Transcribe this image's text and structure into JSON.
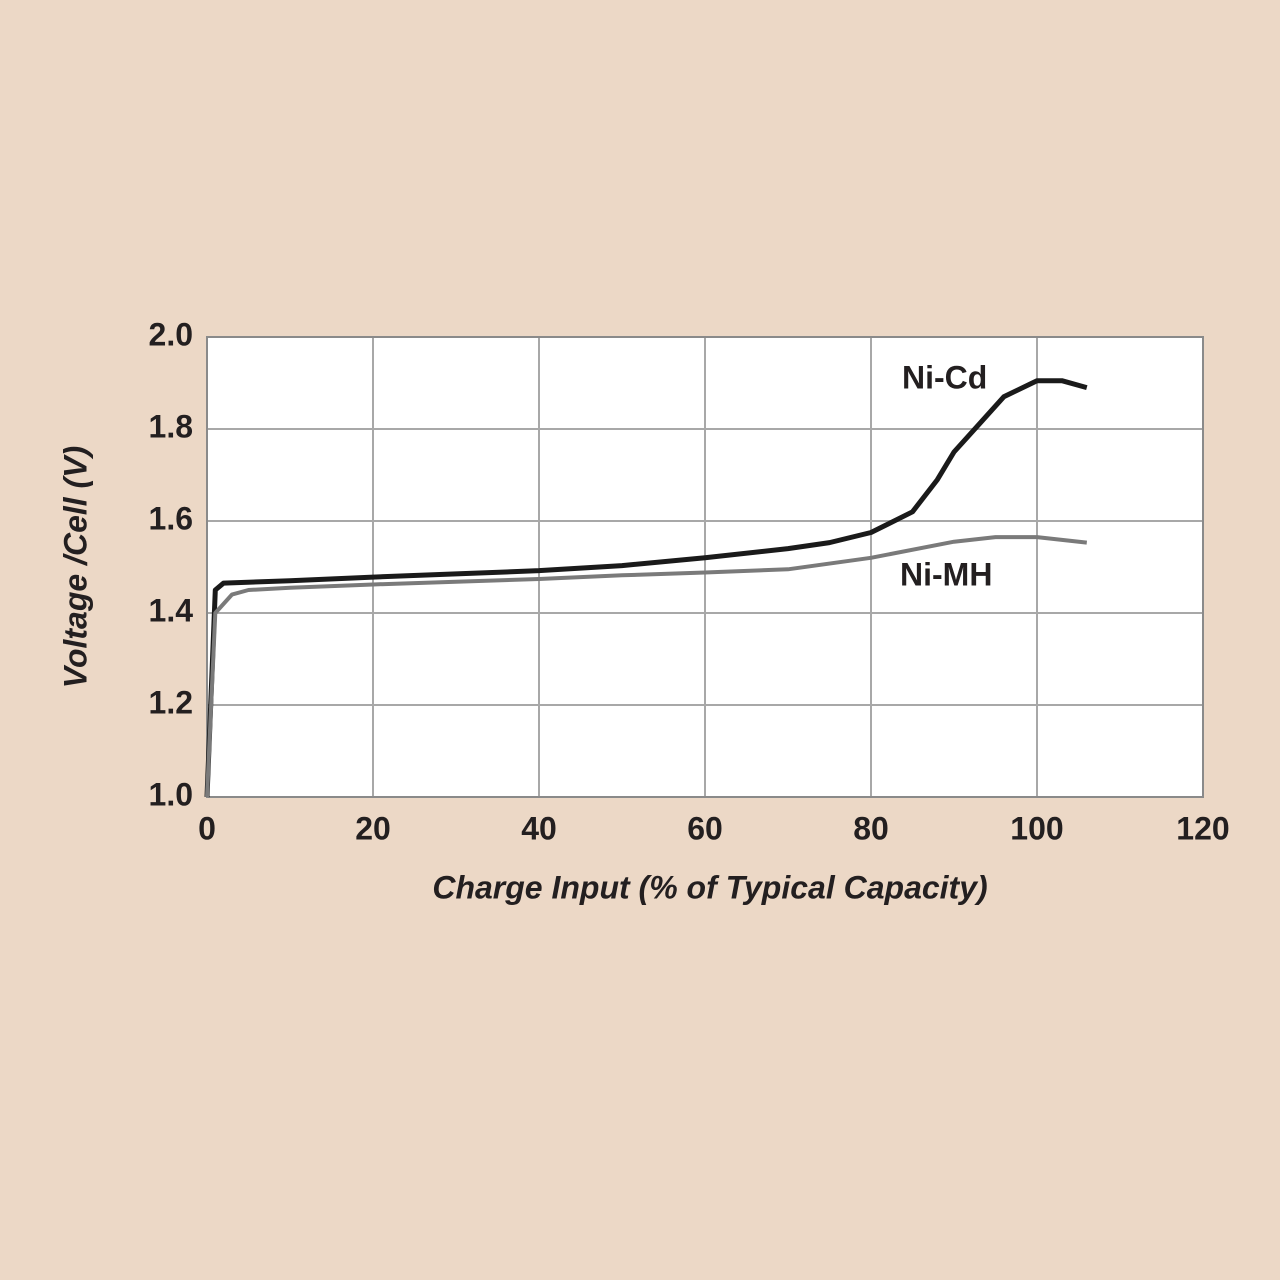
{
  "chart_data": {
    "type": "line",
    "x_label": "Charge Input (% of Typical Capacity)",
    "y_label": "Voltage /Cell (V)",
    "xlim": [
      0,
      120
    ],
    "xticks": [
      0,
      20,
      40,
      60,
      80,
      100,
      120
    ],
    "ylim": [
      1.0,
      2.0
    ],
    "yticks": [
      {
        "value": 1.0,
        "label": "1.0"
      },
      {
        "value": 1.2,
        "label": "1.2"
      },
      {
        "value": 1.4,
        "label": "1.4"
      },
      {
        "value": 1.6,
        "label": "1.6"
      },
      {
        "value": 1.8,
        "label": "1.8"
      },
      {
        "value": 2.0,
        "label": "2.0"
      }
    ],
    "grid": true,
    "series": [
      {
        "name": "Ni-Cd",
        "color": "#1a1a1a",
        "x": [
          0,
          1,
          2,
          10,
          20,
          30,
          40,
          50,
          60,
          70,
          75,
          80,
          85,
          88,
          90,
          93,
          96,
          100,
          103,
          106
        ],
        "values": [
          1.0,
          1.45,
          1.465,
          1.47,
          1.478,
          1.485,
          1.492,
          1.503,
          1.52,
          1.54,
          1.553,
          1.575,
          1.62,
          1.69,
          1.75,
          1.81,
          1.87,
          1.905,
          1.905,
          1.89
        ]
      },
      {
        "name": "Ni-MH",
        "color": "#7a7a7a",
        "x": [
          0,
          1,
          3,
          5,
          10,
          20,
          30,
          40,
          50,
          60,
          70,
          80,
          90,
          95,
          100,
          106
        ],
        "values": [
          1.0,
          1.4,
          1.44,
          1.45,
          1.455,
          1.462,
          1.468,
          1.474,
          1.482,
          1.488,
          1.495,
          1.52,
          1.555,
          1.565,
          1.565,
          1.553
        ]
      }
    ]
  }
}
